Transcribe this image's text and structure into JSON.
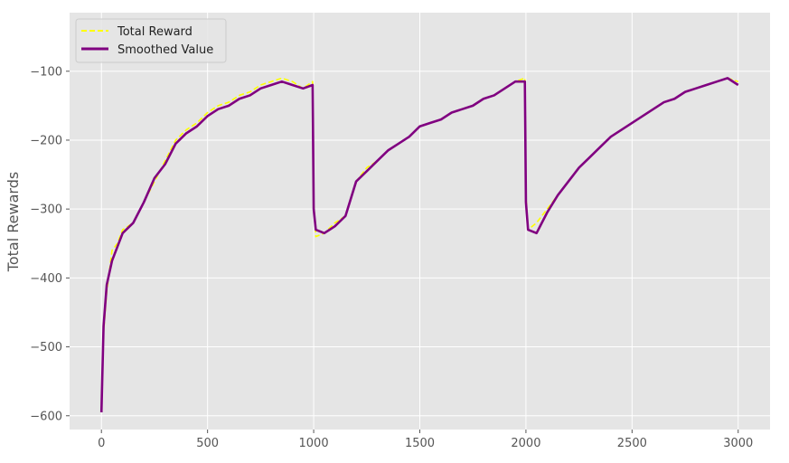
{
  "chart_data": {
    "type": "line",
    "title": "",
    "xlabel": "",
    "ylabel": "Total Rewards",
    "xlim": [
      -150,
      3150
    ],
    "ylim": [
      -620,
      -15
    ],
    "xticks": [
      0,
      500,
      1000,
      1500,
      2000,
      2500,
      3000
    ],
    "yticks": [
      -600,
      -500,
      -400,
      -300,
      -200,
      -100
    ],
    "xtick_labels": [
      "0",
      "500",
      "1000",
      "1500",
      "2000",
      "2500",
      "3000"
    ],
    "ytick_labels": [
      "−600",
      "−500",
      "−400",
      "−300",
      "−200",
      "−100"
    ],
    "grid": true,
    "legend_position": "top-left",
    "background_color": "#e5e5e5",
    "series": [
      {
        "name": "Total Reward",
        "color": "#ffff00",
        "style": "dashed",
        "x": [
          0,
          10,
          25,
          50,
          75,
          100,
          150,
          200,
          250,
          300,
          350,
          400,
          450,
          500,
          550,
          600,
          650,
          700,
          750,
          800,
          850,
          900,
          950,
          995,
          1000,
          1010,
          1050,
          1100,
          1150,
          1200,
          1250,
          1300,
          1350,
          1400,
          1450,
          1500,
          1550,
          1600,
          1650,
          1700,
          1750,
          1800,
          1850,
          1900,
          1950,
          1995,
          2000,
          2010,
          2050,
          2100,
          2150,
          2200,
          2250,
          2300,
          2350,
          2400,
          2450,
          2500,
          2550,
          2600,
          2650,
          2700,
          2750,
          2800,
          2850,
          2900,
          2950,
          3000
        ],
        "values": [
          -590,
          -480,
          -420,
          -360,
          -350,
          -330,
          -320,
          -290,
          -260,
          -230,
          -200,
          -185,
          -175,
          -160,
          -150,
          -145,
          -135,
          -130,
          -120,
          -115,
          -110,
          -115,
          -125,
          -115,
          -290,
          -340,
          -335,
          -320,
          -310,
          -260,
          -240,
          -230,
          -215,
          -205,
          -195,
          -180,
          -175,
          -170,
          -160,
          -155,
          -150,
          -140,
          -135,
          -125,
          -115,
          -110,
          -280,
          -330,
          -320,
          -300,
          -280,
          -260,
          -240,
          -225,
          -210,
          -195,
          -185,
          -175,
          -165,
          -155,
          -145,
          -140,
          -130,
          -125,
          -120,
          -115,
          -110,
          -115
        ]
      },
      {
        "name": "Smoothed Value",
        "color": "#800080",
        "style": "solid",
        "x": [
          0,
          10,
          25,
          50,
          75,
          100,
          150,
          200,
          250,
          300,
          350,
          400,
          450,
          500,
          550,
          600,
          650,
          700,
          750,
          800,
          850,
          900,
          950,
          995,
          1000,
          1010,
          1050,
          1100,
          1150,
          1200,
          1250,
          1300,
          1350,
          1400,
          1450,
          1500,
          1550,
          1600,
          1650,
          1700,
          1750,
          1800,
          1850,
          1900,
          1950,
          1995,
          2000,
          2010,
          2050,
          2100,
          2150,
          2200,
          2250,
          2300,
          2350,
          2400,
          2450,
          2500,
          2550,
          2600,
          2650,
          2700,
          2750,
          2800,
          2850,
          2900,
          2950,
          3000
        ],
        "values": [
          -595,
          -470,
          -410,
          -375,
          -355,
          -335,
          -320,
          -290,
          -255,
          -235,
          -205,
          -190,
          -180,
          -165,
          -155,
          -150,
          -140,
          -135,
          -125,
          -120,
          -115,
          -120,
          -125,
          -120,
          -300,
          -330,
          -335,
          -325,
          -310,
          -260,
          -245,
          -230,
          -215,
          -205,
          -195,
          -180,
          -175,
          -170,
          -160,
          -155,
          -150,
          -140,
          -135,
          -125,
          -115,
          -115,
          -290,
          -330,
          -335,
          -305,
          -280,
          -260,
          -240,
          -225,
          -210,
          -195,
          -185,
          -175,
          -165,
          -155,
          -145,
          -140,
          -130,
          -125,
          -120,
          -115,
          -110,
          -120
        ]
      }
    ]
  }
}
